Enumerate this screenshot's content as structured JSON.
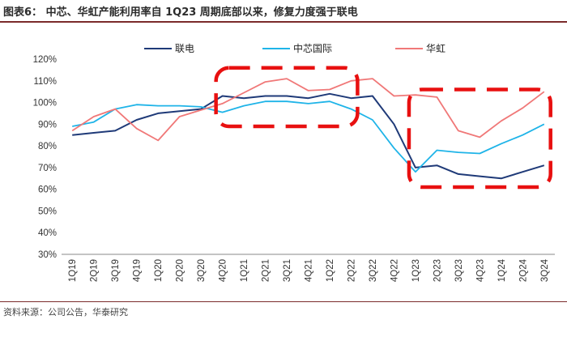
{
  "header": {
    "title": "图表6：   中芯、华虹产能利用率自 1Q23 周期底部以来，修复力度强于联电"
  },
  "footer": {
    "source": "资料来源：公司公告，华泰研究"
  },
  "chart_data": {
    "type": "line",
    "title": "中芯、华虹产能利用率自 1Q23 周期底部以来，修复力度强于联电",
    "xlabel": "",
    "ylabel": "",
    "ylim": [
      30,
      120
    ],
    "yticks": [
      "30%",
      "40%",
      "50%",
      "60%",
      "70%",
      "80%",
      "90%",
      "100%",
      "110%",
      "120%"
    ],
    "categories": [
      "1Q19",
      "2Q19",
      "3Q19",
      "4Q19",
      "1Q20",
      "2Q20",
      "3Q20",
      "4Q20",
      "1Q21",
      "2Q21",
      "3Q21",
      "4Q21",
      "1Q22",
      "2Q22",
      "3Q22",
      "4Q22",
      "1Q23",
      "2Q23",
      "3Q23",
      "4Q23",
      "1Q24",
      "2Q24",
      "3Q24"
    ],
    "legend_position": "top",
    "series": [
      {
        "name": "联电",
        "color": "#1f3a78",
        "values": [
          85,
          86,
          87,
          92,
          95,
          96,
          97,
          103,
          102,
          103,
          103,
          102,
          104,
          102,
          103,
          90,
          70,
          71,
          67,
          66,
          65,
          68,
          71
        ]
      },
      {
        "name": "中芯国际",
        "color": "#1fb4e8",
        "values": [
          89,
          91,
          97,
          99,
          98.5,
          98.5,
          98,
          95.5,
          98.5,
          100.5,
          100.5,
          99.5,
          100.5,
          97,
          92,
          79,
          68,
          78,
          77,
          76.5,
          81,
          85,
          90
        ]
      },
      {
        "name": "华虹",
        "color": "#f07878",
        "values": [
          87,
          93.5,
          97,
          88,
          82.5,
          93.5,
          96.5,
          99.5,
          104.5,
          109.5,
          111,
          105.5,
          106,
          110,
          111,
          103,
          103.5,
          102.5,
          87,
          84,
          91.5,
          97.5,
          105
        ]
      }
    ],
    "highlight_boxes": [
      {
        "from_category": "4Q20",
        "to_category": "2Q22",
        "y_range": [
          89,
          116
        ],
        "color": "#e81010"
      },
      {
        "from_category": "1Q23",
        "to_category": "3Q24",
        "y_range": [
          61,
          106
        ],
        "color": "#e81010"
      }
    ]
  }
}
